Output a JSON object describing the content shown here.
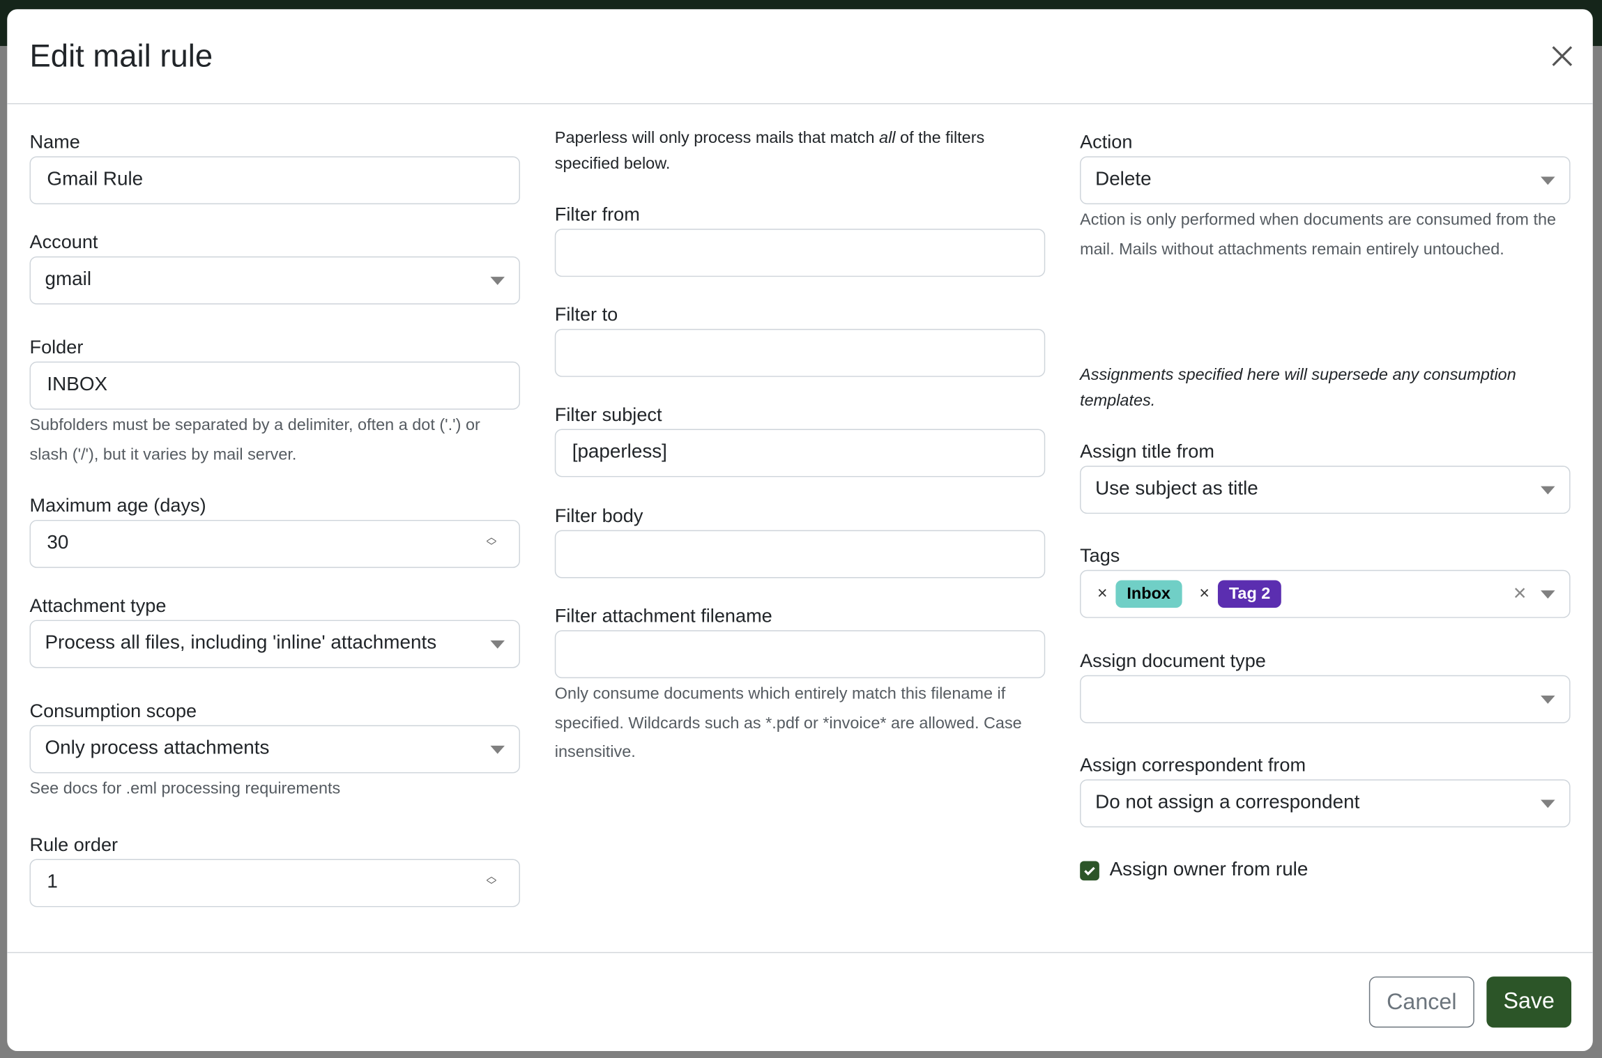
{
  "dialog": {
    "title": "Edit mail rule",
    "close_icon": "close-icon"
  },
  "left": {
    "name": {
      "label": "Name",
      "value": "Gmail Rule"
    },
    "account": {
      "label": "Account",
      "value": "gmail"
    },
    "folder": {
      "label": "Folder",
      "value": "INBOX",
      "help": "Subfolders must be separated by a delimiter, often a dot ('.') or slash ('/'), but it varies by mail server."
    },
    "max_age": {
      "label": "Maximum age (days)",
      "value": "30"
    },
    "attachment_type": {
      "label": "Attachment type",
      "value": "Process all files, including 'inline' attachments"
    },
    "consumption_scope": {
      "label": "Consumption scope",
      "value": "Only process attachments",
      "help": "See docs for .eml processing requirements"
    },
    "rule_order": {
      "label": "Rule order",
      "value": "1"
    }
  },
  "middle": {
    "intro_before": "Paperless will only process mails that match ",
    "intro_em": "all",
    "intro_after": " of the filters specified below.",
    "filter_from": {
      "label": "Filter from",
      "value": ""
    },
    "filter_to": {
      "label": "Filter to",
      "value": ""
    },
    "filter_subject": {
      "label": "Filter subject",
      "value": "[paperless]"
    },
    "filter_body": {
      "label": "Filter body",
      "value": ""
    },
    "filter_attachment": {
      "label": "Filter attachment filename",
      "value": "",
      "help": "Only consume documents which entirely match this filename if specified. Wildcards such as *.pdf or *invoice* are allowed. Case insensitive."
    }
  },
  "right": {
    "action": {
      "label": "Action",
      "value": "Delete",
      "help": "Action is only performed when documents are consumed from the mail. Mails without attachments remain entirely untouched."
    },
    "assignments_note": "Assignments specified here will supersede any consumption templates.",
    "assign_title": {
      "label": "Assign title from",
      "value": "Use subject as title"
    },
    "tags": {
      "label": "Tags",
      "items": [
        {
          "label": "Inbox",
          "bg": "#70cfc6",
          "fg": "#000000"
        },
        {
          "label": "Tag 2",
          "bg": "#5b2eb0",
          "fg": "#ffffff"
        }
      ]
    },
    "assign_doc_type": {
      "label": "Assign document type",
      "value": ""
    },
    "assign_correspondent": {
      "label": "Assign correspondent from",
      "value": "Do not assign a correspondent"
    },
    "assign_owner": {
      "label": "Assign owner from rule",
      "checked": true
    }
  },
  "footer": {
    "cancel": "Cancel",
    "save": "Save"
  },
  "colors": {
    "primary": "#2c5528",
    "topbar": "#15251a",
    "overlay": "#7f7f7f"
  }
}
